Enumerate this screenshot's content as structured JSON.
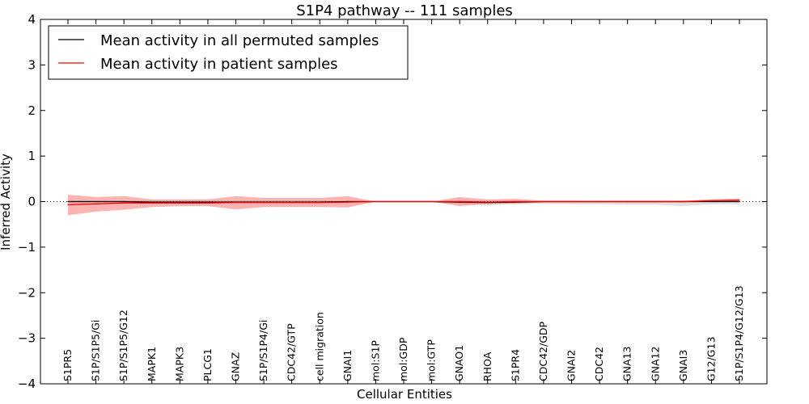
{
  "chart_data": {
    "type": "line",
    "title": "S1P4 pathway -- 111 samples",
    "xlabel": "Cellular Entities",
    "ylabel": "Inferred Activity",
    "ylim": [
      -4,
      4
    ],
    "yticks": [
      -4,
      -3,
      -2,
      -1,
      0,
      1,
      2,
      3,
      4
    ],
    "ytick_labels": [
      "−4",
      "−3",
      "−2",
      "−1",
      "0",
      "1",
      "2",
      "3",
      "4"
    ],
    "grid": false,
    "legend": {
      "placement": "top-left",
      "entries": [
        {
          "label": "Mean activity in all permuted samples",
          "color": "#000000"
        },
        {
          "label": "Mean activity in patient samples",
          "color": "#ff0000"
        }
      ]
    },
    "categories": [
      "S1PR5",
      "S1P/S1P5/Gi",
      "S1P/S1P5/G12",
      "MAPK1",
      "MAPK3",
      "PLCG1",
      "GNAZ",
      "S1P/S1P4/Gi",
      "CDC42/GTP",
      "cell migration",
      "GNAI1",
      "mol:S1P",
      "mol:GDP",
      "mol:GTP",
      "GNAO1",
      "RHOA",
      "S1PR4",
      "CDC42/GDP",
      "GNAI2",
      "CDC42",
      "GNA13",
      "GNA12",
      "GNAI3",
      "G12/G13",
      "S1P/S1P4/G12/G13"
    ],
    "series": [
      {
        "name": "Mean activity in all permuted samples",
        "color": "#000000",
        "values": [
          0,
          0,
          0,
          -0.01,
          -0.01,
          -0.01,
          -0.01,
          -0.01,
          -0.01,
          -0.01,
          0,
          0,
          0,
          0,
          -0.01,
          -0.02,
          -0.01,
          0,
          0,
          0,
          0,
          0,
          0,
          0,
          0
        ],
        "band_lower": [
          -0.02,
          -0.02,
          -0.02,
          -0.03,
          -0.03,
          -0.03,
          -0.03,
          -0.03,
          -0.03,
          -0.03,
          -0.02,
          -0.02,
          -0.02,
          -0.02,
          -0.05,
          -0.08,
          -0.06,
          -0.05,
          -0.06,
          -0.06,
          -0.07,
          -0.07,
          -0.1,
          -0.06,
          -0.06
        ],
        "band_upper": [
          0.02,
          0.02,
          0.02,
          0.02,
          0.02,
          0.02,
          0.02,
          0.02,
          0.02,
          0.02,
          0.02,
          0.02,
          0.02,
          0.02,
          0.02,
          0.02,
          0.02,
          0.02,
          0.02,
          0.02,
          0.02,
          0.02,
          0.02,
          0.02,
          0.02
        ]
      },
      {
        "name": "Mean activity in patient samples",
        "color": "#ff0000",
        "values": [
          -0.07,
          -0.05,
          -0.03,
          -0.03,
          -0.03,
          -0.03,
          -0.02,
          -0.02,
          -0.02,
          -0.02,
          -0.01,
          0,
          0,
          0,
          0,
          -0.01,
          0,
          0,
          0,
          0,
          0,
          0,
          0,
          0.02,
          0.03
        ],
        "band_lower": [
          -0.3,
          -0.22,
          -0.18,
          -0.12,
          -0.1,
          -0.1,
          -0.17,
          -0.12,
          -0.12,
          -0.12,
          -0.13,
          0,
          0,
          0,
          -0.1,
          -0.05,
          -0.04,
          -0.02,
          -0.02,
          -0.02,
          -0.02,
          -0.02,
          -0.02,
          0,
          0.01
        ],
        "band_upper": [
          0.15,
          0.1,
          0.12,
          0.05,
          0.05,
          0.05,
          0.12,
          0.08,
          0.08,
          0.08,
          0.12,
          0,
          0,
          0,
          0.1,
          0.05,
          0.06,
          0.02,
          0.02,
          0.02,
          0.02,
          0.02,
          0.02,
          0.05,
          0.07
        ]
      }
    ]
  }
}
